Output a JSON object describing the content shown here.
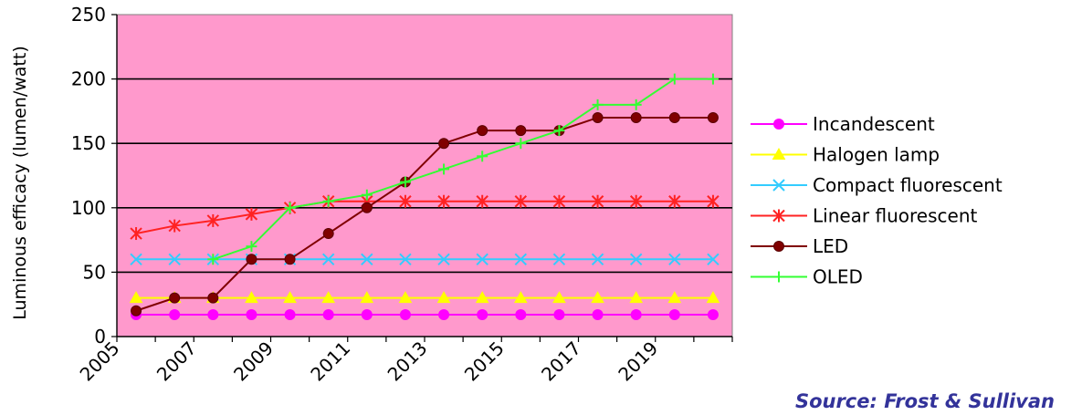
{
  "chart_data": {
    "type": "line",
    "ylabel": "Luminous efficacy (lumen/watt)",
    "source": "Source: Frost & Sullivan",
    "ylim": [
      0,
      250
    ],
    "yticks": [
      0,
      50,
      100,
      150,
      200,
      250
    ],
    "xlim": [
      2005,
      2021
    ],
    "xticks": [
      2005,
      2007,
      2009,
      2011,
      2013,
      2015,
      2017,
      2019
    ],
    "grid": true,
    "plot_background": "#ff99cc",
    "legend_position": "right",
    "x": [
      2005.5,
      2006.5,
      2007.5,
      2008.5,
      2009.5,
      2010.5,
      2011.5,
      2012.5,
      2013.5,
      2014.5,
      2015.5,
      2016.5,
      2017.5,
      2018.5,
      2019.5,
      2020.5
    ],
    "series": [
      {
        "name": "Incandescent",
        "color": "#ff00ff",
        "marker": "circle",
        "values": [
          17,
          17,
          17,
          17,
          17,
          17,
          17,
          17,
          17,
          17,
          17,
          17,
          17,
          17,
          17,
          17
        ]
      },
      {
        "name": "Halogen lamp",
        "color": "#ffff00",
        "marker": "triangle",
        "values": [
          30,
          30,
          30,
          30,
          30,
          30,
          30,
          30,
          30,
          30,
          30,
          30,
          30,
          30,
          30,
          30
        ]
      },
      {
        "name": "Compact fluorescent",
        "color": "#33ccff",
        "marker": "x",
        "values": [
          60,
          60,
          60,
          60,
          60,
          60,
          60,
          60,
          60,
          60,
          60,
          60,
          60,
          60,
          60,
          60
        ]
      },
      {
        "name": "Linear fluorescent",
        "color": "#ff2222",
        "marker": "asterisk",
        "values": [
          80,
          86,
          90,
          95,
          100,
          105,
          105,
          105,
          105,
          105,
          105,
          105,
          105,
          105,
          105,
          105
        ]
      },
      {
        "name": "LED",
        "color": "#800000",
        "marker": "dot",
        "values": [
          20,
          30,
          30,
          60,
          60,
          80,
          100,
          120,
          150,
          160,
          160,
          160,
          170,
          170,
          170,
          170
        ]
      },
      {
        "name": "OLED",
        "color": "#33ff33",
        "marker": "plus",
        "values": [
          null,
          null,
          60,
          70,
          100,
          105,
          110,
          120,
          130,
          140,
          150,
          160,
          180,
          180,
          200,
          200
        ]
      }
    ]
  }
}
